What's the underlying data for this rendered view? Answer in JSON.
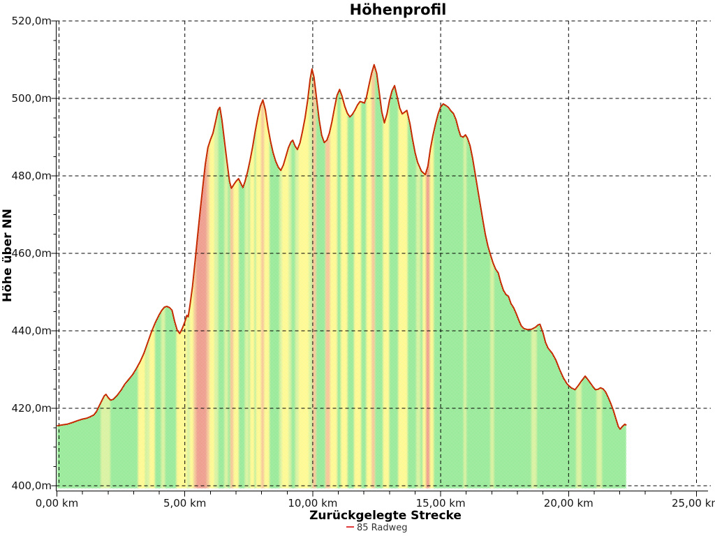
{
  "title": "Höhenprofil",
  "y_axis": {
    "title": "Höhe über NN",
    "unit": "m",
    "min": 400,
    "max": 520,
    "major_step": 20,
    "minor_step": 5,
    "tick_labels": [
      "400,0m",
      "420,0m",
      "440,0m",
      "460,0m",
      "480,0m",
      "500,0m",
      "520,0m"
    ]
  },
  "x_axis": {
    "title": "Zurückgelegte Strecke",
    "unit": "km",
    "min": 0,
    "max": 25,
    "major_step": 5,
    "minor_step": 1,
    "tick_labels": [
      "0,00 km",
      "5,00 km",
      "10,00 km",
      "15,00 km",
      "20,00 km",
      "25,00 km"
    ]
  },
  "legend": {
    "items": [
      {
        "label": "85 Radweg",
        "color": "#E03A3A"
      }
    ]
  },
  "colors": {
    "background": "#ffffff",
    "grid": "#000000",
    "outline": "#C52A00",
    "band_colors": {
      "green": "#40D840",
      "pale": "#B8E84E",
      "yellow": "#FFF433",
      "orange": "#F2923D",
      "red": "#E0462C"
    }
  },
  "chart_data": {
    "type": "area",
    "title": "Höhenprofil",
    "xlabel": "Zurückgelegte Strecke",
    "ylabel": "Höhe über NN",
    "xlim": [
      0,
      25
    ],
    "ylim": [
      400,
      520
    ],
    "grid": true,
    "legend_position": "bottom-center",
    "series": [
      {
        "name": "85 Radweg",
        "x_unit": "km",
        "y_unit": "m",
        "points": [
          [
            0.0,
            415.5
          ],
          [
            0.2,
            415.7
          ],
          [
            0.4,
            415.9
          ],
          [
            0.6,
            416.3
          ],
          [
            0.8,
            416.8
          ],
          [
            1.0,
            417.2
          ],
          [
            1.15,
            417.4
          ],
          [
            1.3,
            417.8
          ],
          [
            1.45,
            418.3
          ],
          [
            1.55,
            419.2
          ],
          [
            1.65,
            420.6
          ],
          [
            1.75,
            421.9
          ],
          [
            1.85,
            423.2
          ],
          [
            1.92,
            423.6
          ],
          [
            2.0,
            422.8
          ],
          [
            2.1,
            422.1
          ],
          [
            2.2,
            422.3
          ],
          [
            2.35,
            423.3
          ],
          [
            2.5,
            424.6
          ],
          [
            2.65,
            426.2
          ],
          [
            2.8,
            427.4
          ],
          [
            2.95,
            428.6
          ],
          [
            3.1,
            430.2
          ],
          [
            3.25,
            432.0
          ],
          [
            3.4,
            434.2
          ],
          [
            3.55,
            437.0
          ],
          [
            3.7,
            439.8
          ],
          [
            3.85,
            442.2
          ],
          [
            4.0,
            444.2
          ],
          [
            4.1,
            445.3
          ],
          [
            4.2,
            446.1
          ],
          [
            4.3,
            446.3
          ],
          [
            4.4,
            446.0
          ],
          [
            4.5,
            445.3
          ],
          [
            4.6,
            442.5
          ],
          [
            4.7,
            440.2
          ],
          [
            4.8,
            439.3
          ],
          [
            4.9,
            440.6
          ],
          [
            5.0,
            442.3
          ],
          [
            5.08,
            444.0
          ],
          [
            5.13,
            443.6
          ],
          [
            5.2,
            446.5
          ],
          [
            5.3,
            451.5
          ],
          [
            5.4,
            458.0
          ],
          [
            5.5,
            464.5
          ],
          [
            5.6,
            471.0
          ],
          [
            5.7,
            477.0
          ],
          [
            5.8,
            483.0
          ],
          [
            5.9,
            487.3
          ],
          [
            6.0,
            489.3
          ],
          [
            6.1,
            491.0
          ],
          [
            6.2,
            494.0
          ],
          [
            6.3,
            497.0
          ],
          [
            6.37,
            497.7
          ],
          [
            6.45,
            494.5
          ],
          [
            6.55,
            489.0
          ],
          [
            6.65,
            483.5
          ],
          [
            6.75,
            478.5
          ],
          [
            6.82,
            476.8
          ],
          [
            6.9,
            477.6
          ],
          [
            7.0,
            478.6
          ],
          [
            7.1,
            479.3
          ],
          [
            7.18,
            478.2
          ],
          [
            7.27,
            477.0
          ],
          [
            7.35,
            478.5
          ],
          [
            7.45,
            481.0
          ],
          [
            7.55,
            484.0
          ],
          [
            7.65,
            487.5
          ],
          [
            7.75,
            491.5
          ],
          [
            7.85,
            495.0
          ],
          [
            7.95,
            498.0
          ],
          [
            8.05,
            499.6
          ],
          [
            8.15,
            497.0
          ],
          [
            8.25,
            492.5
          ],
          [
            8.35,
            489.0
          ],
          [
            8.45,
            486.0
          ],
          [
            8.55,
            483.8
          ],
          [
            8.65,
            482.3
          ],
          [
            8.75,
            481.4
          ],
          [
            8.85,
            482.8
          ],
          [
            8.95,
            485.0
          ],
          [
            9.05,
            487.3
          ],
          [
            9.15,
            488.8
          ],
          [
            9.22,
            489.2
          ],
          [
            9.3,
            487.8
          ],
          [
            9.4,
            486.8
          ],
          [
            9.5,
            488.5
          ],
          [
            9.6,
            491.5
          ],
          [
            9.7,
            495.0
          ],
          [
            9.8,
            499.5
          ],
          [
            9.9,
            505.0
          ],
          [
            9.97,
            507.6
          ],
          [
            10.05,
            505.5
          ],
          [
            10.15,
            500.0
          ],
          [
            10.25,
            494.5
          ],
          [
            10.35,
            490.5
          ],
          [
            10.45,
            488.6
          ],
          [
            10.55,
            489.2
          ],
          [
            10.65,
            491.0
          ],
          [
            10.75,
            494.0
          ],
          [
            10.85,
            497.5
          ],
          [
            10.95,
            500.8
          ],
          [
            11.05,
            502.3
          ],
          [
            11.15,
            500.5
          ],
          [
            11.25,
            498.0
          ],
          [
            11.35,
            496.2
          ],
          [
            11.45,
            495.2
          ],
          [
            11.55,
            495.9
          ],
          [
            11.65,
            497.0
          ],
          [
            11.75,
            498.3
          ],
          [
            11.85,
            499.2
          ],
          [
            11.95,
            499.0
          ],
          [
            12.02,
            498.8
          ],
          [
            12.1,
            500.3
          ],
          [
            12.2,
            503.5
          ],
          [
            12.3,
            506.5
          ],
          [
            12.4,
            508.7
          ],
          [
            12.5,
            506.5
          ],
          [
            12.6,
            501.5
          ],
          [
            12.7,
            496.5
          ],
          [
            12.8,
            493.7
          ],
          [
            12.9,
            496.0
          ],
          [
            13.0,
            499.5
          ],
          [
            13.1,
            502.0
          ],
          [
            13.2,
            503.3
          ],
          [
            13.3,
            500.5
          ],
          [
            13.4,
            497.5
          ],
          [
            13.5,
            496.0
          ],
          [
            13.6,
            496.5
          ],
          [
            13.68,
            496.9
          ],
          [
            13.8,
            493.5
          ],
          [
            13.9,
            489.5
          ],
          [
            14.0,
            486.0
          ],
          [
            14.1,
            483.5
          ],
          [
            14.25,
            481.2
          ],
          [
            14.4,
            480.3
          ],
          [
            14.5,
            482.5
          ],
          [
            14.6,
            487.0
          ],
          [
            14.7,
            490.5
          ],
          [
            14.8,
            493.5
          ],
          [
            14.9,
            496.0
          ],
          [
            15.0,
            497.8
          ],
          [
            15.1,
            498.6
          ],
          [
            15.2,
            498.2
          ],
          [
            15.3,
            497.7
          ],
          [
            15.4,
            496.8
          ],
          [
            15.5,
            496.1
          ],
          [
            15.6,
            494.5
          ],
          [
            15.7,
            492.0
          ],
          [
            15.78,
            490.3
          ],
          [
            15.88,
            490.0
          ],
          [
            15.97,
            490.6
          ],
          [
            16.05,
            489.7
          ],
          [
            16.15,
            487.8
          ],
          [
            16.25,
            484.5
          ],
          [
            16.35,
            480.5
          ],
          [
            16.45,
            476.5
          ],
          [
            16.55,
            472.5
          ],
          [
            16.65,
            468.5
          ],
          [
            16.75,
            464.8
          ],
          [
            16.85,
            461.8
          ],
          [
            16.95,
            459.6
          ],
          [
            17.05,
            457.5
          ],
          [
            17.15,
            455.9
          ],
          [
            17.25,
            455.0
          ],
          [
            17.35,
            452.5
          ],
          [
            17.45,
            450.5
          ],
          [
            17.55,
            449.4
          ],
          [
            17.65,
            448.9
          ],
          [
            17.75,
            447.0
          ],
          [
            17.85,
            446.0
          ],
          [
            17.95,
            444.5
          ],
          [
            18.05,
            442.8
          ],
          [
            18.15,
            441.3
          ],
          [
            18.25,
            440.6
          ],
          [
            18.4,
            440.3
          ],
          [
            18.55,
            440.4
          ],
          [
            18.7,
            440.9
          ],
          [
            18.8,
            441.5
          ],
          [
            18.88,
            441.7
          ],
          [
            19.0,
            439.5
          ],
          [
            19.1,
            437.0
          ],
          [
            19.2,
            435.5
          ],
          [
            19.35,
            434.3
          ],
          [
            19.5,
            432.5
          ],
          [
            19.65,
            430.0
          ],
          [
            19.8,
            427.8
          ],
          [
            19.95,
            426.2
          ],
          [
            20.1,
            425.3
          ],
          [
            20.25,
            424.8
          ],
          [
            20.35,
            425.6
          ],
          [
            20.5,
            427.0
          ],
          [
            20.65,
            428.3
          ],
          [
            20.8,
            427.0
          ],
          [
            20.95,
            425.6
          ],
          [
            21.05,
            424.8
          ],
          [
            21.15,
            424.9
          ],
          [
            21.25,
            425.3
          ],
          [
            21.35,
            425.0
          ],
          [
            21.45,
            424.2
          ],
          [
            21.55,
            422.8
          ],
          [
            21.65,
            421.2
          ],
          [
            21.75,
            419.5
          ],
          [
            21.85,
            417.3
          ],
          [
            21.95,
            415.2
          ],
          [
            22.02,
            414.6
          ],
          [
            22.1,
            415.3
          ],
          [
            22.2,
            415.9
          ],
          [
            22.26,
            415.6
          ]
        ]
      }
    ],
    "slope_bands": [
      [
        1.72,
        2.08,
        "pale"
      ],
      [
        3.18,
        3.45,
        "yellow"
      ],
      [
        3.48,
        3.62,
        "pale"
      ],
      [
        3.62,
        3.82,
        "yellow"
      ],
      [
        4.08,
        4.22,
        "pale"
      ],
      [
        4.68,
        5.08,
        "yellow"
      ],
      [
        5.08,
        5.2,
        "pale"
      ],
      [
        5.2,
        5.34,
        "yellow"
      ],
      [
        5.34,
        5.44,
        "orange"
      ],
      [
        5.44,
        5.86,
        "red"
      ],
      [
        5.86,
        5.96,
        "orange"
      ],
      [
        5.96,
        6.15,
        "yellow"
      ],
      [
        6.15,
        6.3,
        "pale"
      ],
      [
        6.55,
        6.68,
        "pale"
      ],
      [
        6.78,
        6.9,
        "orange"
      ],
      [
        6.9,
        7.1,
        "yellow"
      ],
      [
        7.35,
        7.5,
        "pale"
      ],
      [
        7.55,
        7.72,
        "yellow"
      ],
      [
        7.78,
        7.98,
        "yellow"
      ],
      [
        7.98,
        8.1,
        "orange"
      ],
      [
        8.1,
        8.3,
        "yellow"
      ],
      [
        8.7,
        8.8,
        "pale"
      ],
      [
        8.8,
        9.05,
        "yellow"
      ],
      [
        9.05,
        9.15,
        "pale"
      ],
      [
        9.32,
        9.45,
        "pale"
      ],
      [
        9.45,
        9.85,
        "yellow"
      ],
      [
        9.85,
        9.95,
        "pale"
      ],
      [
        9.98,
        10.12,
        "orange"
      ],
      [
        10.5,
        10.68,
        "orange"
      ],
      [
        10.68,
        10.95,
        "yellow"
      ],
      [
        11.1,
        11.35,
        "yellow"
      ],
      [
        11.62,
        11.88,
        "yellow"
      ],
      [
        12.1,
        12.3,
        "yellow"
      ],
      [
        12.3,
        12.42,
        "orange"
      ],
      [
        12.75,
        12.98,
        "yellow"
      ],
      [
        13.35,
        13.7,
        "yellow"
      ],
      [
        14.05,
        14.2,
        "pale"
      ],
      [
        14.3,
        14.42,
        "yellow"
      ],
      [
        14.42,
        14.58,
        "red"
      ],
      [
        14.58,
        14.72,
        "yellow"
      ],
      [
        15.9,
        16.0,
        "pale"
      ],
      [
        16.95,
        17.08,
        "pale"
      ],
      [
        18.55,
        18.75,
        "pale"
      ],
      [
        20.3,
        20.5,
        "pale"
      ],
      [
        21.1,
        21.3,
        "pale"
      ]
    ]
  }
}
